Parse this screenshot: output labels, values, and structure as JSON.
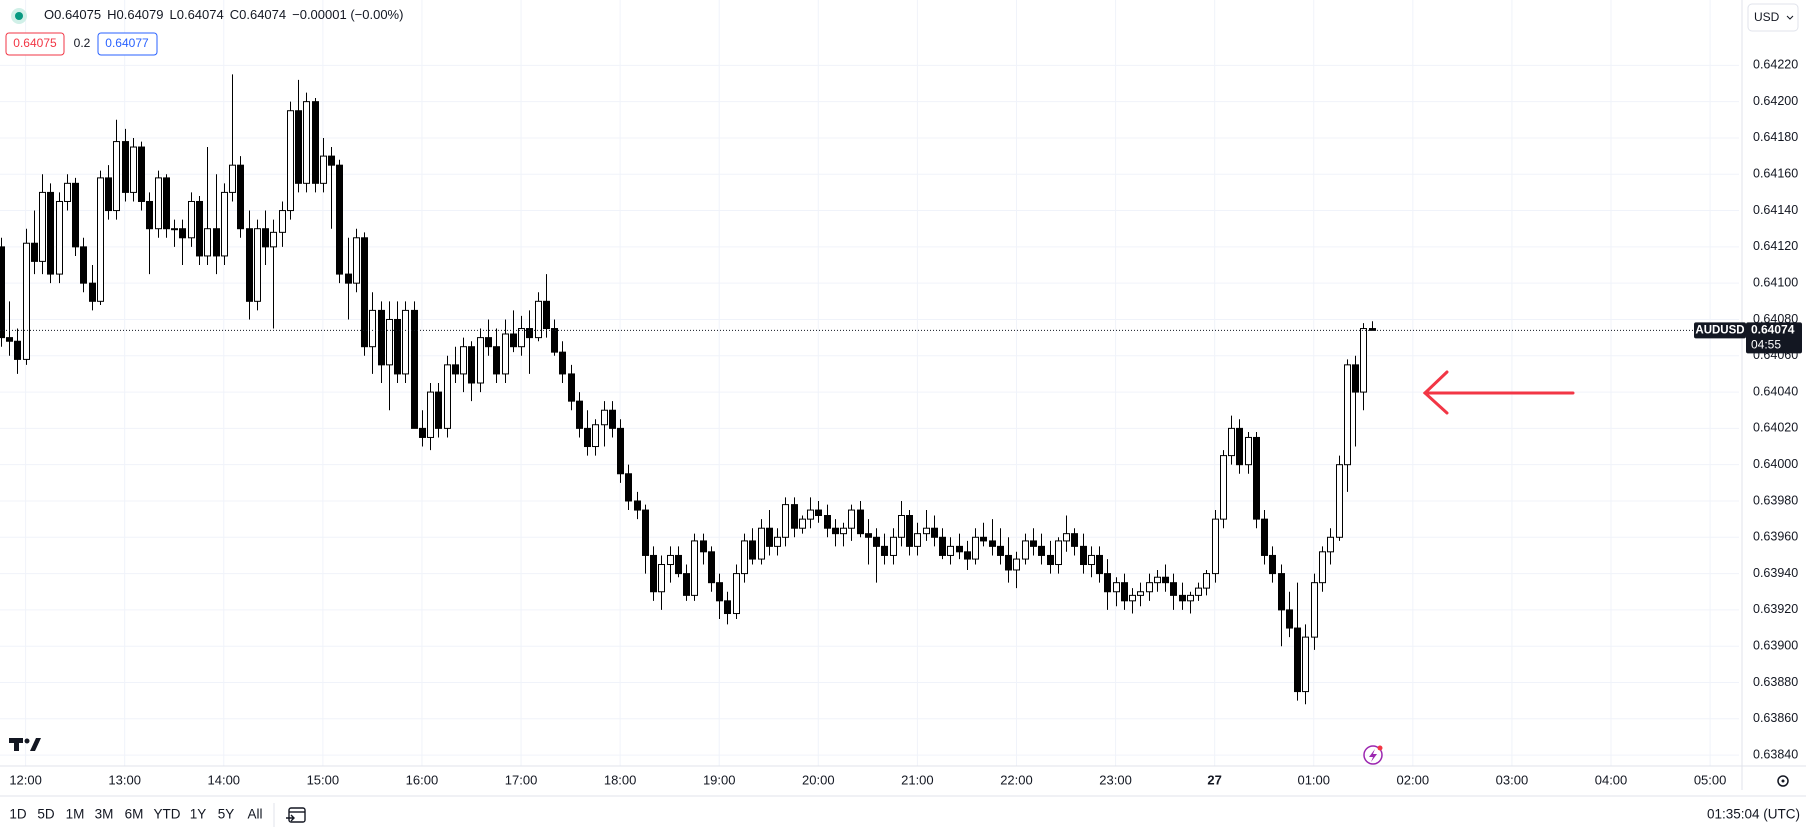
{
  "chart_data": {
    "type": "candlestick",
    "symbol": "AUDUSD",
    "currency": "USD",
    "header": [
      "O0.64075",
      "H0.64079",
      "L0.64074",
      "C0.64074",
      "−0.00001 (−0.00%)"
    ],
    "bid": "0.64075",
    "spread": "0.2",
    "ask": "0.64077",
    "last_price": 0.64074,
    "countdown": "04:55",
    "clock": "01:35:04 (UTC)",
    "range_buttons": [
      "1D",
      "5D",
      "1M",
      "3M",
      "6M",
      "YTD",
      "1Y",
      "5Y",
      "All"
    ],
    "grid": true,
    "up_color": "#ffffff",
    "down_color": "#000000",
    "xlim": [
      -0.1,
      210.5
    ],
    "ylim": [
      0.63834,
      0.64256
    ],
    "xticks": [
      {
        "value": 3,
        "label": "12:00"
      },
      {
        "value": 15,
        "label": "13:00"
      },
      {
        "value": 27,
        "label": "14:00"
      },
      {
        "value": 39,
        "label": "15:00"
      },
      {
        "value": 51,
        "label": "16:00"
      },
      {
        "value": 63,
        "label": "17:00"
      },
      {
        "value": 75,
        "label": "18:00"
      },
      {
        "value": 87,
        "label": "19:00"
      },
      {
        "value": 99,
        "label": "20:00"
      },
      {
        "value": 111,
        "label": "21:00"
      },
      {
        "value": 123,
        "label": "22:00"
      },
      {
        "value": 135,
        "label": "23:00"
      },
      {
        "value": 147,
        "label": "27"
      },
      {
        "value": 159,
        "label": "01:00"
      },
      {
        "value": 171,
        "label": "02:00"
      },
      {
        "value": 183,
        "label": "03:00"
      },
      {
        "value": 195,
        "label": "04:00"
      },
      {
        "value": 207,
        "label": "05:00"
      }
    ],
    "yticks": [
      {
        "value": 0.6384,
        "label": "0.63840"
      },
      {
        "value": 0.6386,
        "label": "0.63860"
      },
      {
        "value": 0.6388,
        "label": "0.63880"
      },
      {
        "value": 0.639,
        "label": "0.63900"
      },
      {
        "value": 0.6392,
        "label": "0.63920"
      },
      {
        "value": 0.6394,
        "label": "0.63940"
      },
      {
        "value": 0.6396,
        "label": "0.63960"
      },
      {
        "value": 0.6398,
        "label": "0.63980"
      },
      {
        "value": 0.64,
        "label": "0.64000"
      },
      {
        "value": 0.6402,
        "label": "0.64020"
      },
      {
        "value": 0.6404,
        "label": "0.64040"
      },
      {
        "value": 0.6406,
        "label": "0.64060"
      },
      {
        "value": 0.6408,
        "label": "0.64080"
      },
      {
        "value": 0.641,
        "label": "0.64100"
      },
      {
        "value": 0.6412,
        "label": "0.64120"
      },
      {
        "value": 0.6414,
        "label": "0.64140"
      },
      {
        "value": 0.6416,
        "label": "0.64160"
      },
      {
        "value": 0.6418,
        "label": "0.64180"
      },
      {
        "value": 0.642,
        "label": "0.64200"
      },
      {
        "value": 0.6422,
        "label": "0.64220"
      }
    ],
    "candles": [
      [
        0.6412,
        0.64125,
        0.64065,
        0.6407
      ],
      [
        0.6407,
        0.6409,
        0.6406,
        0.64068
      ],
      [
        0.64068,
        0.64075,
        0.6405,
        0.64058
      ],
      [
        0.64058,
        0.6413,
        0.64055,
        0.64122
      ],
      [
        0.64122,
        0.6414,
        0.64105,
        0.64112
      ],
      [
        0.64112,
        0.6416,
        0.64105,
        0.6415
      ],
      [
        0.6415,
        0.64155,
        0.641,
        0.64105
      ],
      [
        0.64105,
        0.6415,
        0.641,
        0.64145
      ],
      [
        0.64145,
        0.6416,
        0.6414,
        0.64155
      ],
      [
        0.64155,
        0.64158,
        0.64115,
        0.6412
      ],
      [
        0.6412,
        0.64125,
        0.64095,
        0.641
      ],
      [
        0.641,
        0.6411,
        0.64085,
        0.6409
      ],
      [
        0.6409,
        0.64162,
        0.64088,
        0.64158
      ],
      [
        0.64158,
        0.64165,
        0.64135,
        0.6414
      ],
      [
        0.6414,
        0.6419,
        0.64135,
        0.64178
      ],
      [
        0.64178,
        0.64185,
        0.64145,
        0.6415
      ],
      [
        0.6415,
        0.6418,
        0.64145,
        0.64175
      ],
      [
        0.64175,
        0.64178,
        0.6414,
        0.64145
      ],
      [
        0.64145,
        0.6415,
        0.64105,
        0.6413
      ],
      [
        0.6413,
        0.64162,
        0.64125,
        0.64158
      ],
      [
        0.64158,
        0.6416,
        0.64125,
        0.6413
      ],
      [
        0.6413,
        0.64135,
        0.6412,
        0.6413
      ],
      [
        0.6413,
        0.64135,
        0.6411,
        0.64125
      ],
      [
        0.64125,
        0.6415,
        0.6412,
        0.64145
      ],
      [
        0.64145,
        0.64148,
        0.6411,
        0.64115
      ],
      [
        0.64115,
        0.64175,
        0.6411,
        0.6413
      ],
      [
        0.6413,
        0.6416,
        0.64105,
        0.64115
      ],
      [
        0.64115,
        0.64155,
        0.6411,
        0.6415
      ],
      [
        0.6415,
        0.64215,
        0.64145,
        0.64165
      ],
      [
        0.64165,
        0.6417,
        0.64125,
        0.6413
      ],
      [
        0.6413,
        0.6414,
        0.6408,
        0.6409
      ],
      [
        0.6409,
        0.64135,
        0.64085,
        0.6413
      ],
      [
        0.6413,
        0.6414,
        0.6411,
        0.6412
      ],
      [
        0.6412,
        0.64135,
        0.64075,
        0.64128
      ],
      [
        0.64128,
        0.64145,
        0.6412,
        0.6414
      ],
      [
        0.6414,
        0.642,
        0.64135,
        0.64195
      ],
      [
        0.64195,
        0.64212,
        0.6415,
        0.64155
      ],
      [
        0.64155,
        0.64205,
        0.6415,
        0.642
      ],
      [
        0.642,
        0.64202,
        0.6415,
        0.64155
      ],
      [
        0.64155,
        0.6418,
        0.6415,
        0.6417
      ],
      [
        0.6417,
        0.64175,
        0.6413,
        0.64165
      ],
      [
        0.64165,
        0.64168,
        0.641,
        0.64105
      ],
      [
        0.64105,
        0.64125,
        0.6408,
        0.641
      ],
      [
        0.641,
        0.6413,
        0.64095,
        0.64125
      ],
      [
        0.64125,
        0.64128,
        0.6406,
        0.64065
      ],
      [
        0.64065,
        0.64095,
        0.6405,
        0.64085
      ],
      [
        0.64085,
        0.6409,
        0.64045,
        0.64055
      ],
      [
        0.64055,
        0.6409,
        0.6403,
        0.6408
      ],
      [
        0.6408,
        0.6409,
        0.64045,
        0.6405
      ],
      [
        0.6405,
        0.6409,
        0.64045,
        0.64085
      ],
      [
        0.64085,
        0.6409,
        0.6402,
        0.6402
      ],
      [
        0.6402,
        0.6403,
        0.6401,
        0.64015
      ],
      [
        0.64015,
        0.64045,
        0.64008,
        0.6404
      ],
      [
        0.6404,
        0.64045,
        0.64015,
        0.6402
      ],
      [
        0.6402,
        0.6406,
        0.64015,
        0.64055
      ],
      [
        0.64055,
        0.64065,
        0.64045,
        0.6405
      ],
      [
        0.6405,
        0.6407,
        0.6404,
        0.64065
      ],
      [
        0.64065,
        0.64068,
        0.64035,
        0.64045
      ],
      [
        0.64045,
        0.64075,
        0.6404,
        0.6407
      ],
      [
        0.6407,
        0.6408,
        0.6406,
        0.64065
      ],
      [
        0.64065,
        0.64075,
        0.64045,
        0.6405
      ],
      [
        0.6405,
        0.6408,
        0.64045,
        0.64072
      ],
      [
        0.64072,
        0.64085,
        0.64062,
        0.64065
      ],
      [
        0.64065,
        0.64082,
        0.6406,
        0.64075
      ],
      [
        0.64075,
        0.64085,
        0.6405,
        0.6407
      ],
      [
        0.6407,
        0.64095,
        0.64068,
        0.6409
      ],
      [
        0.6409,
        0.64105,
        0.6407,
        0.64075
      ],
      [
        0.64075,
        0.6408,
        0.6406,
        0.64062
      ],
      [
        0.64062,
        0.64068,
        0.64045,
        0.6405
      ],
      [
        0.6405,
        0.64055,
        0.6403,
        0.64035
      ],
      [
        0.64035,
        0.6404,
        0.64015,
        0.6402
      ],
      [
        0.6402,
        0.6403,
        0.64005,
        0.6401
      ],
      [
        0.6401,
        0.64025,
        0.64005,
        0.64022
      ],
      [
        0.64022,
        0.64035,
        0.6401,
        0.6403
      ],
      [
        0.6403,
        0.64035,
        0.64015,
        0.6402
      ],
      [
        0.6402,
        0.64025,
        0.6399,
        0.63995
      ],
      [
        0.63995,
        0.64,
        0.63975,
        0.6398
      ],
      [
        0.6398,
        0.63985,
        0.6397,
        0.63975
      ],
      [
        0.63975,
        0.63978,
        0.6394,
        0.6395
      ],
      [
        0.6395,
        0.63955,
        0.63925,
        0.6393
      ],
      [
        0.6393,
        0.6395,
        0.6392,
        0.63945
      ],
      [
        0.63945,
        0.63955,
        0.63935,
        0.6395
      ],
      [
        0.6395,
        0.63955,
        0.63938,
        0.6394
      ],
      [
        0.6394,
        0.63945,
        0.63925,
        0.63928
      ],
      [
        0.63928,
        0.63962,
        0.63925,
        0.63958
      ],
      [
        0.63958,
        0.63962,
        0.63945,
        0.63952
      ],
      [
        0.63952,
        0.63955,
        0.6393,
        0.63935
      ],
      [
        0.63935,
        0.6394,
        0.63915,
        0.63925
      ],
      [
        0.63925,
        0.6393,
        0.63912,
        0.63918
      ],
      [
        0.63918,
        0.63945,
        0.63915,
        0.6394
      ],
      [
        0.6394,
        0.63962,
        0.63935,
        0.63958
      ],
      [
        0.63958,
        0.63965,
        0.63945,
        0.63948
      ],
      [
        0.63948,
        0.6397,
        0.63945,
        0.63965
      ],
      [
        0.63965,
        0.63975,
        0.6395,
        0.63955
      ],
      [
        0.63955,
        0.63965,
        0.6395,
        0.6396
      ],
      [
        0.6396,
        0.63982,
        0.63955,
        0.63978
      ],
      [
        0.63978,
        0.63982,
        0.6396,
        0.63965
      ],
      [
        0.63965,
        0.63972,
        0.63962,
        0.6397
      ],
      [
        0.6397,
        0.63982,
        0.63965,
        0.63975
      ],
      [
        0.63975,
        0.6398,
        0.63968,
        0.63972
      ],
      [
        0.63972,
        0.63978,
        0.6396,
        0.63965
      ],
      [
        0.63965,
        0.6397,
        0.63955,
        0.63962
      ],
      [
        0.63962,
        0.63968,
        0.63955,
        0.63965
      ],
      [
        0.63965,
        0.63978,
        0.63958,
        0.63975
      ],
      [
        0.63975,
        0.6398,
        0.6396,
        0.63962
      ],
      [
        0.63962,
        0.6397,
        0.63945,
        0.6396
      ],
      [
        0.6396,
        0.63965,
        0.63935,
        0.63955
      ],
      [
        0.63955,
        0.63962,
        0.63945,
        0.6395
      ],
      [
        0.6395,
        0.63965,
        0.63945,
        0.6396
      ],
      [
        0.6396,
        0.6398,
        0.63955,
        0.63972
      ],
      [
        0.63972,
        0.63975,
        0.6395,
        0.63955
      ],
      [
        0.63955,
        0.63968,
        0.6395,
        0.63962
      ],
      [
        0.63962,
        0.63975,
        0.63958,
        0.63965
      ],
      [
        0.63965,
        0.63972,
        0.63955,
        0.6396
      ],
      [
        0.6396,
        0.63965,
        0.63948,
        0.6395
      ],
      [
        0.6395,
        0.6396,
        0.63945,
        0.63955
      ],
      [
        0.63955,
        0.63962,
        0.63948,
        0.63952
      ],
      [
        0.63952,
        0.63958,
        0.63942,
        0.63948
      ],
      [
        0.63948,
        0.63965,
        0.63945,
        0.6396
      ],
      [
        0.6396,
        0.63968,
        0.63955,
        0.63958
      ],
      [
        0.63958,
        0.6397,
        0.6395,
        0.63955
      ],
      [
        0.63955,
        0.63965,
        0.63945,
        0.6395
      ],
      [
        0.6395,
        0.6396,
        0.63935,
        0.63942
      ],
      [
        0.63942,
        0.63952,
        0.63932,
        0.63948
      ],
      [
        0.63948,
        0.63962,
        0.63945,
        0.63958
      ],
      [
        0.63958,
        0.63965,
        0.6395,
        0.63955
      ],
      [
        0.63955,
        0.63962,
        0.63945,
        0.6395
      ],
      [
        0.6395,
        0.63958,
        0.6394,
        0.63945
      ],
      [
        0.63945,
        0.6396,
        0.6394,
        0.63958
      ],
      [
        0.63958,
        0.63972,
        0.63952,
        0.63962
      ],
      [
        0.63962,
        0.63965,
        0.6395,
        0.63955
      ],
      [
        0.63955,
        0.63962,
        0.6394,
        0.63945
      ],
      [
        0.63945,
        0.63955,
        0.63938,
        0.6395
      ],
      [
        0.6395,
        0.63955,
        0.63935,
        0.6394
      ],
      [
        0.6394,
        0.63948,
        0.6392,
        0.6393
      ],
      [
        0.6393,
        0.63938,
        0.63922,
        0.63935
      ],
      [
        0.63935,
        0.6394,
        0.6392,
        0.63925
      ],
      [
        0.63925,
        0.63932,
        0.63918,
        0.63928
      ],
      [
        0.63928,
        0.63935,
        0.63922,
        0.6393
      ],
      [
        0.6393,
        0.6394,
        0.63925,
        0.63935
      ],
      [
        0.63935,
        0.63942,
        0.6393,
        0.63938
      ],
      [
        0.63938,
        0.63945,
        0.6393,
        0.63935
      ],
      [
        0.63935,
        0.6394,
        0.6392,
        0.63928
      ],
      [
        0.63928,
        0.63935,
        0.6392,
        0.63925
      ],
      [
        0.63925,
        0.6393,
        0.63918,
        0.63928
      ],
      [
        0.63928,
        0.63935,
        0.63925,
        0.63932
      ],
      [
        0.63932,
        0.63942,
        0.63928,
        0.6394
      ],
      [
        0.6394,
        0.63975,
        0.63935,
        0.6397
      ],
      [
        0.6397,
        0.64008,
        0.63965,
        0.64005
      ],
      [
        0.64005,
        0.64027,
        0.64,
        0.6402
      ],
      [
        0.6402,
        0.64025,
        0.63995,
        0.64
      ],
      [
        0.64,
        0.64018,
        0.63995,
        0.64015
      ],
      [
        0.64015,
        0.64018,
        0.63965,
        0.6397
      ],
      [
        0.6397,
        0.63975,
        0.63945,
        0.6395
      ],
      [
        0.6395,
        0.63955,
        0.63935,
        0.6394
      ],
      [
        0.6394,
        0.63945,
        0.639,
        0.6392
      ],
      [
        0.6392,
        0.6393,
        0.63905,
        0.6391
      ],
      [
        0.6391,
        0.63935,
        0.6387,
        0.63875
      ],
      [
        0.63875,
        0.63912,
        0.63868,
        0.63905
      ],
      [
        0.63905,
        0.6394,
        0.63898,
        0.63935
      ],
      [
        0.63935,
        0.63955,
        0.6393,
        0.63952
      ],
      [
        0.63952,
        0.63965,
        0.63945,
        0.6396
      ],
      [
        0.6396,
        0.64005,
        0.63958,
        0.64
      ],
      [
        0.64,
        0.64058,
        0.63985,
        0.64055
      ],
      [
        0.64055,
        0.6406,
        0.6401,
        0.6404
      ],
      [
        0.6404,
        0.64078,
        0.6403,
        0.64075
      ],
      [
        0.64075,
        0.64079,
        0.64074,
        0.64074
      ]
    ]
  }
}
